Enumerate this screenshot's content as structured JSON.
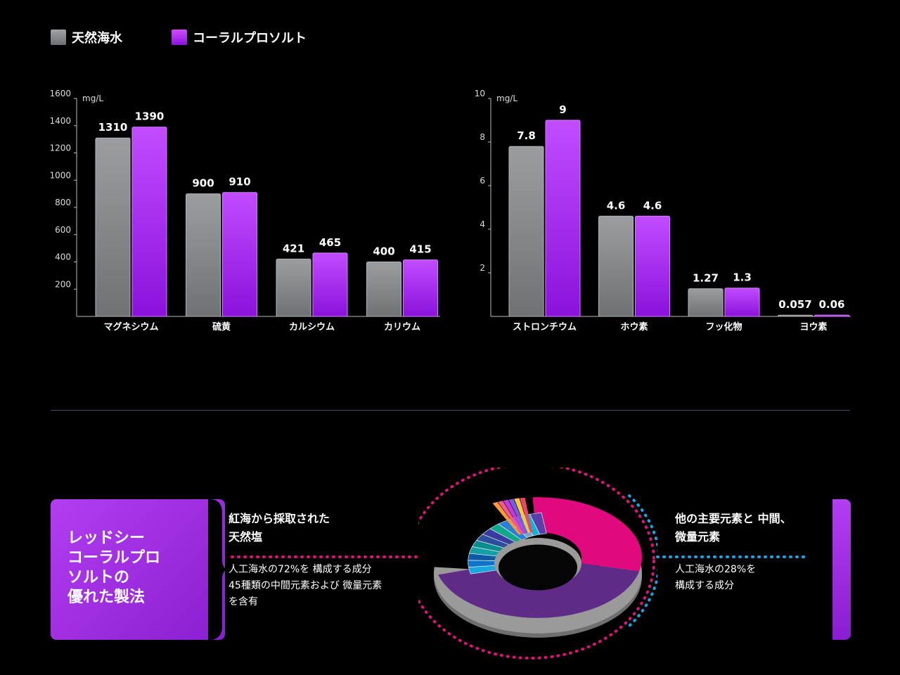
{
  "legend": {
    "natural": "天然海水",
    "coral": "コーラルプロソルト",
    "colors": {
      "natural": "#8a8e90",
      "coral": "#b52cf5"
    }
  },
  "chart_data": [
    {
      "type": "bar",
      "unit": "mg/L",
      "categories": [
        "マグネシウム",
        "硫黄",
        "カルシウム",
        "カリウム"
      ],
      "series": [
        {
          "name": "天然海水",
          "values": [
            1310,
            900,
            421,
            400
          ]
        },
        {
          "name": "コーラルプロソルト",
          "values": [
            1390,
            910,
            465,
            415
          ]
        }
      ],
      "value_labels": [
        [
          "1310",
          "900",
          "421",
          "400"
        ],
        [
          "1390",
          "910",
          "465",
          "415"
        ]
      ],
      "yticks": [
        1600,
        1400,
        1200,
        1000,
        800,
        600,
        400,
        200
      ],
      "ylim": [
        0,
        1600
      ]
    },
    {
      "type": "bar",
      "unit": "mg/L",
      "categories": [
        "ストロンチウム",
        "ホウ素",
        "フッ化物",
        "ヨウ素"
      ],
      "series": [
        {
          "name": "天然海水",
          "values": [
            7.8,
            4.6,
            1.27,
            0.057
          ]
        },
        {
          "name": "コーラルプロソルト",
          "values": [
            9,
            4.6,
            1.3,
            0.06
          ]
        }
      ],
      "value_labels": [
        [
          "7.8",
          "4.6",
          "1.27",
          "0.057"
        ],
        [
          "9",
          "4.6",
          "1.3",
          "0.06"
        ]
      ],
      "yticks": [
        10,
        8,
        6,
        4,
        2
      ],
      "ylim": [
        0,
        10
      ]
    },
    {
      "type": "pie",
      "values": [
        72,
        28
      ],
      "segments": [
        "紅海から採取された天然塩",
        "他の主要元素と 中間、微量元素"
      ]
    }
  ],
  "bottom": {
    "card_title": "レッドシー\nコーラルプロ\nソルトの\n優れた製法",
    "left_title": "紅海から採取された\n天然塩",
    "left_desc": "人工海水の72%を  構成する成分\n45種類の中間元素および  微量元素\nを含有",
    "right_title": "他の主要元素と  中間、\n微量元素",
    "right_desc": "人工海水の28%を\n構成する成分"
  }
}
